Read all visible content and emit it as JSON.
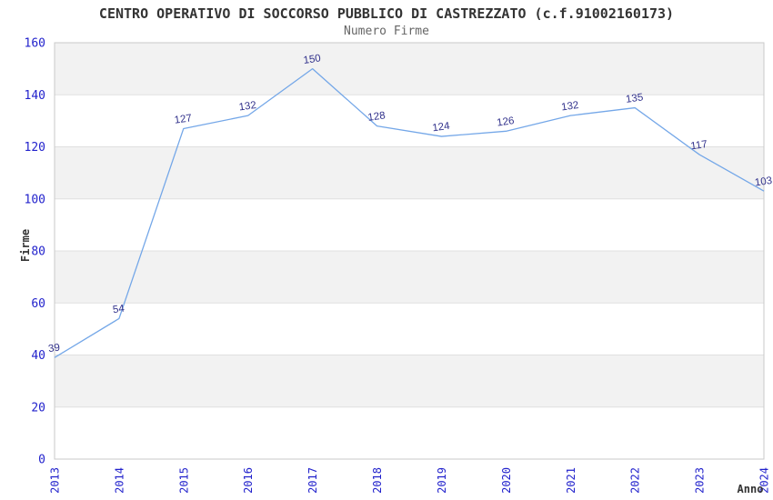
{
  "chart_data": {
    "type": "line",
    "title": "CENTRO OPERATIVO DI SOCCORSO PUBBLICO DI CASTREZZATO (c.f.91002160173)",
    "subtitle": "Numero Firme",
    "xlabel": "Anno",
    "ylabel": "Firme",
    "categories": [
      "2013",
      "2014",
      "2015",
      "2016",
      "2017",
      "2018",
      "2019",
      "2020",
      "2021",
      "2022",
      "2023",
      "2024"
    ],
    "values": [
      39,
      54,
      127,
      132,
      150,
      128,
      124,
      126,
      132,
      135,
      117,
      103
    ],
    "ylim": [
      0,
      160
    ],
    "ytick_step": 20,
    "legend": "none",
    "grid": "horizontal-bands",
    "colors": {
      "line": "#74a7e8",
      "data_label": "#32328c",
      "tick_label": "#2222cc",
      "band_gray": "#f2f2f2",
      "band_white": "#ffffff",
      "grid_line": "#e0e0e0",
      "plot_border": "#c9c9c9",
      "title": "#333333",
      "subtitle": "#666666"
    }
  }
}
